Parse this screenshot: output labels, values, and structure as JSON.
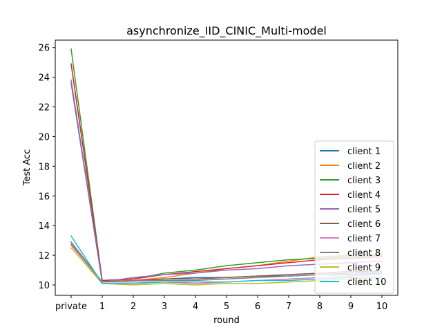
{
  "chart_data": {
    "type": "line",
    "title": "asynchronize_IID_CINIC_Multi-model",
    "xlabel": "round",
    "ylabel": "Test Acc",
    "categories": [
      "private",
      "1",
      "2",
      "3",
      "4",
      "5",
      "6",
      "7",
      "8",
      "9",
      "10"
    ],
    "ylim": [
      9.3,
      26.5
    ],
    "yticks": [
      10,
      12,
      14,
      16,
      18,
      20,
      22,
      24,
      26
    ],
    "grid": false,
    "legend_position": "lower-right",
    "series": [
      {
        "name": "client 1",
        "color": "#1f77b4",
        "values": [
          23.6,
          10.2,
          10.3,
          10.4,
          10.5,
          10.5,
          10.6,
          10.6,
          10.7,
          10.7,
          10.8
        ]
      },
      {
        "name": "client 2",
        "color": "#ff7f0e",
        "values": [
          24.9,
          10.3,
          10.3,
          10.5,
          10.8,
          11.1,
          11.3,
          11.6,
          11.9,
          12.0,
          12.1
        ]
      },
      {
        "name": "client 3",
        "color": "#2ca02c",
        "values": [
          25.9,
          10.3,
          10.4,
          10.8,
          11.0,
          11.3,
          11.5,
          11.7,
          11.8,
          11.9,
          12.0
        ]
      },
      {
        "name": "client 4",
        "color": "#d62728",
        "values": [
          24.9,
          10.3,
          10.4,
          10.7,
          10.9,
          11.1,
          11.3,
          11.5,
          11.7,
          11.8,
          11.9
        ]
      },
      {
        "name": "client 5",
        "color": "#9467bd",
        "values": [
          23.8,
          10.2,
          10.5,
          10.7,
          10.8,
          11.0,
          11.1,
          11.3,
          11.4,
          11.5,
          11.6
        ]
      },
      {
        "name": "client 6",
        "color": "#8c564b",
        "values": [
          12.7,
          10.2,
          10.3,
          10.4,
          10.4,
          10.5,
          10.6,
          10.7,
          10.8,
          10.9,
          10.9
        ]
      },
      {
        "name": "client 7",
        "color": "#e377c2",
        "values": [
          12.8,
          10.2,
          10.2,
          10.2,
          10.1,
          10.2,
          10.3,
          10.4,
          10.5,
          10.6,
          10.7
        ]
      },
      {
        "name": "client 8",
        "color": "#7f7f7f",
        "values": [
          12.9,
          10.2,
          10.3,
          10.3,
          10.3,
          10.4,
          10.5,
          10.6,
          10.7,
          10.8,
          10.9
        ]
      },
      {
        "name": "client 9",
        "color": "#bcbd22",
        "values": [
          12.5,
          10.1,
          10.0,
          10.1,
          10.0,
          10.1,
          10.1,
          10.2,
          10.3,
          10.4,
          10.5
        ]
      },
      {
        "name": "client 10",
        "color": "#17becf",
        "values": [
          13.3,
          10.1,
          10.1,
          10.2,
          10.2,
          10.2,
          10.3,
          10.3,
          10.4,
          10.5,
          10.5
        ]
      }
    ]
  }
}
